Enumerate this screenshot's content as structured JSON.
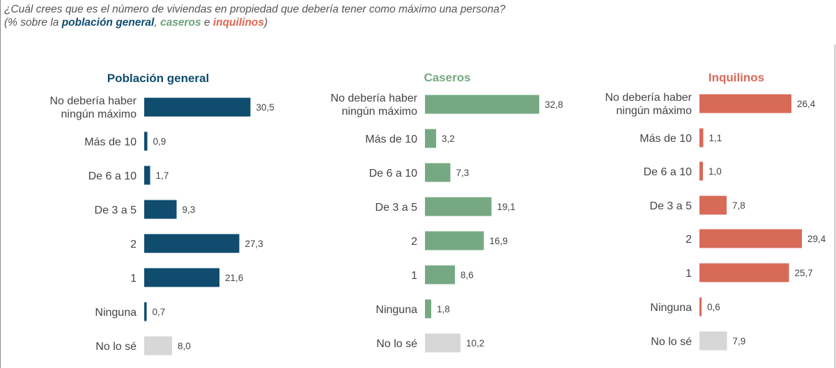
{
  "header": {
    "question": "¿Cuál crees que es el número de viviendas en propiedad que debería tener como máximo una persona?",
    "subtitle_prefix": "(% sobre la ",
    "subtitle_general": "población general",
    "subtitle_sep1": ", ",
    "subtitle_caseros": "caseros",
    "subtitle_sep2": " e ",
    "subtitle_inquilinos": "inquilinos",
    "subtitle_suffix": ")"
  },
  "colors": {
    "general": "#0f4c6e",
    "caseros": "#76a983",
    "inquilinos": "#d86a58",
    "no_lo_se": "#d7d7d7"
  },
  "chart_data": [
    {
      "type": "bar",
      "orientation": "horizontal",
      "title": "Población general",
      "categories": [
        [
          "No debería haber",
          "ningún máximo"
        ],
        "Más de 10",
        "De 6 a 10",
        "De 3 a 5",
        "2",
        "1",
        "Ninguna",
        "No lo sé"
      ],
      "values": [
        30.5,
        0.9,
        1.7,
        9.3,
        27.3,
        21.6,
        0.7,
        8.0
      ],
      "value_labels": [
        "30,5",
        "0,9",
        "1,7",
        "9,3",
        "27,3",
        "21,6",
        "0,7",
        "8,0"
      ],
      "unit": "%"
    },
    {
      "type": "bar",
      "orientation": "horizontal",
      "title": "Caseros",
      "categories": [
        [
          "No debería haber",
          "ningún máximo"
        ],
        "Más de 10",
        "De 6 a 10",
        "De 3 a 5",
        "2",
        "1",
        "Ninguna",
        "No lo sé"
      ],
      "values": [
        32.8,
        3.2,
        7.3,
        19.1,
        16.9,
        8.6,
        1.8,
        10.2
      ],
      "value_labels": [
        "32,8",
        "3,2",
        "7,3",
        "19,1",
        "16,9",
        "8,6",
        "1,8",
        "10,2"
      ],
      "unit": "%"
    },
    {
      "type": "bar",
      "orientation": "horizontal",
      "title": "Inquilinos",
      "categories": [
        [
          "No debería haber",
          "ningún máximo"
        ],
        "Más de 10",
        "De 6 a 10",
        "De 3 a 5",
        "2",
        "1",
        "Ninguna",
        "No lo sé"
      ],
      "values": [
        26.4,
        1.1,
        1.0,
        7.8,
        29.4,
        25.7,
        0.6,
        7.9
      ],
      "value_labels": [
        "26,4",
        "1,1",
        "1,0",
        "7,8",
        "29,4",
        "25,7",
        "0,6",
        "7,9"
      ],
      "unit": "%"
    }
  ]
}
